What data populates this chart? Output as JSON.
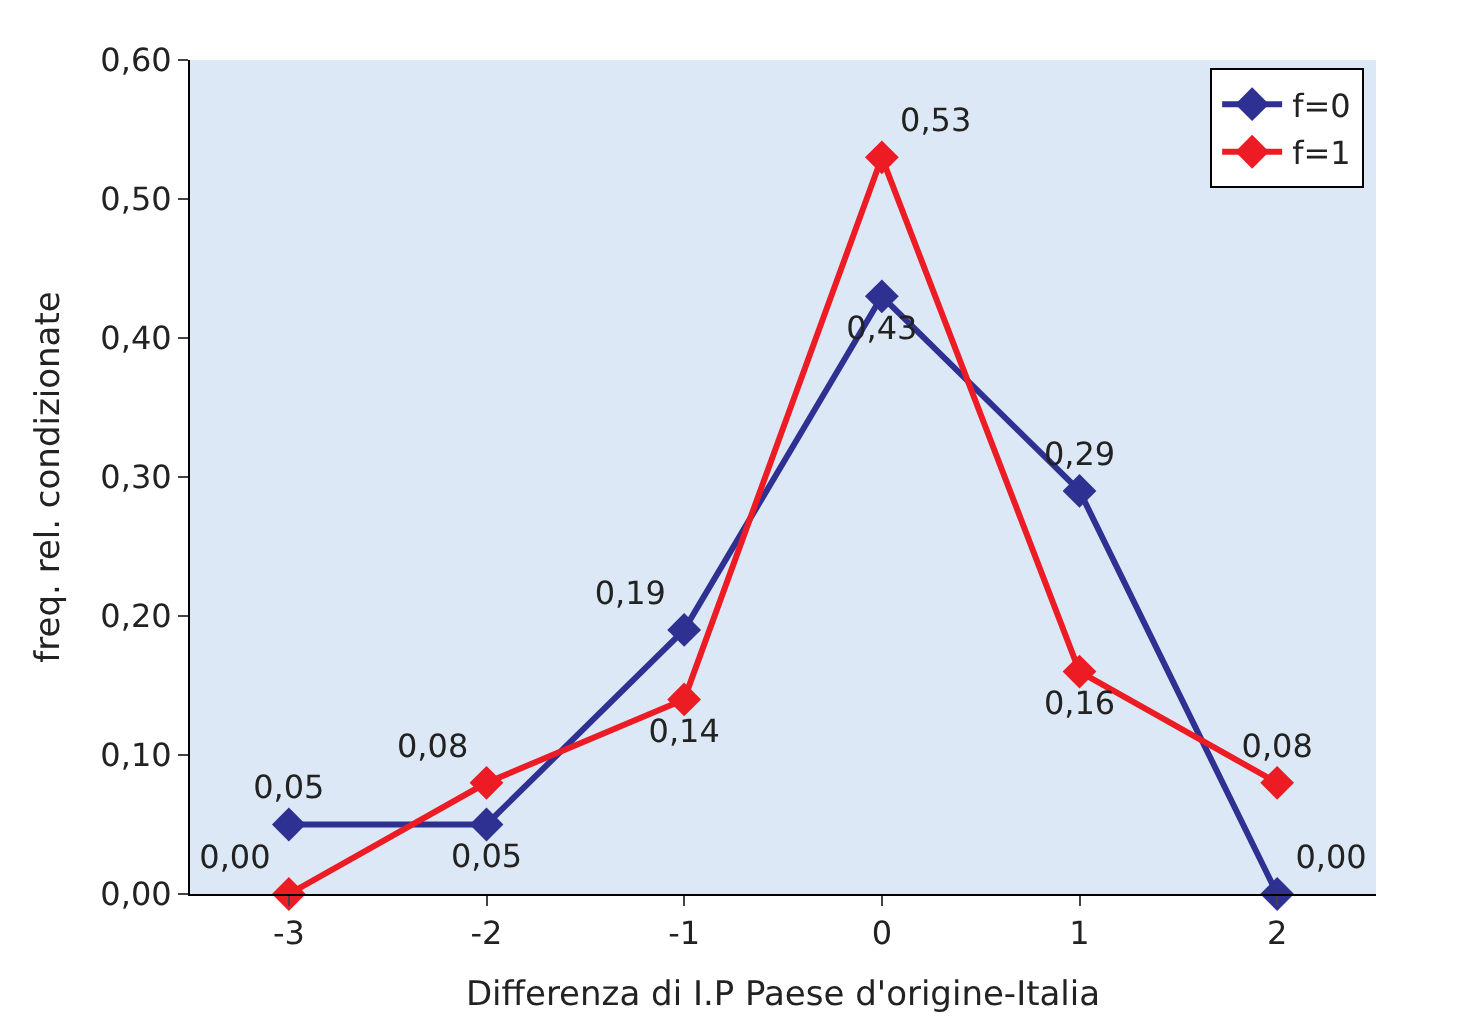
{
  "chart_data": {
    "type": "line",
    "xlabel": "Differenza di I.P Paese d'origine-Italia",
    "ylabel": "freq. rel. condizionate",
    "categories": [
      "-3",
      "-2",
      "-1",
      "0",
      "1",
      "2"
    ],
    "series": [
      {
        "name": "f=0",
        "color": "#2e3192",
        "values": [
          0.05,
          0.05,
          0.19,
          0.43,
          0.29,
          0.0
        ],
        "value_labels": [
          "0,05",
          "0,05",
          "0,19",
          "0,43",
          "0,29",
          "0,00"
        ]
      },
      {
        "name": "f=1",
        "color": "#ed1c24",
        "values": [
          0.0,
          0.08,
          0.14,
          0.53,
          0.16,
          0.08
        ],
        "value_labels": [
          "0,00",
          "0,08",
          "0,14",
          "0,53",
          "0,16",
          "0,08"
        ]
      }
    ],
    "ylim": [
      0,
      0.6
    ],
    "yticks": [
      {
        "value": 0,
        "label": "0,00"
      },
      {
        "value": 0.1,
        "label": "0,10"
      },
      {
        "value": 0.2,
        "label": "0,20"
      },
      {
        "value": 0.3,
        "label": "0,30"
      },
      {
        "value": 0.4,
        "label": "0,40"
      },
      {
        "value": 0.5,
        "label": "0,50"
      },
      {
        "value": 0.6,
        "label": "0,60"
      }
    ],
    "grid": false,
    "legend": "top right",
    "marker": "diamond",
    "line_style": "solid"
  }
}
